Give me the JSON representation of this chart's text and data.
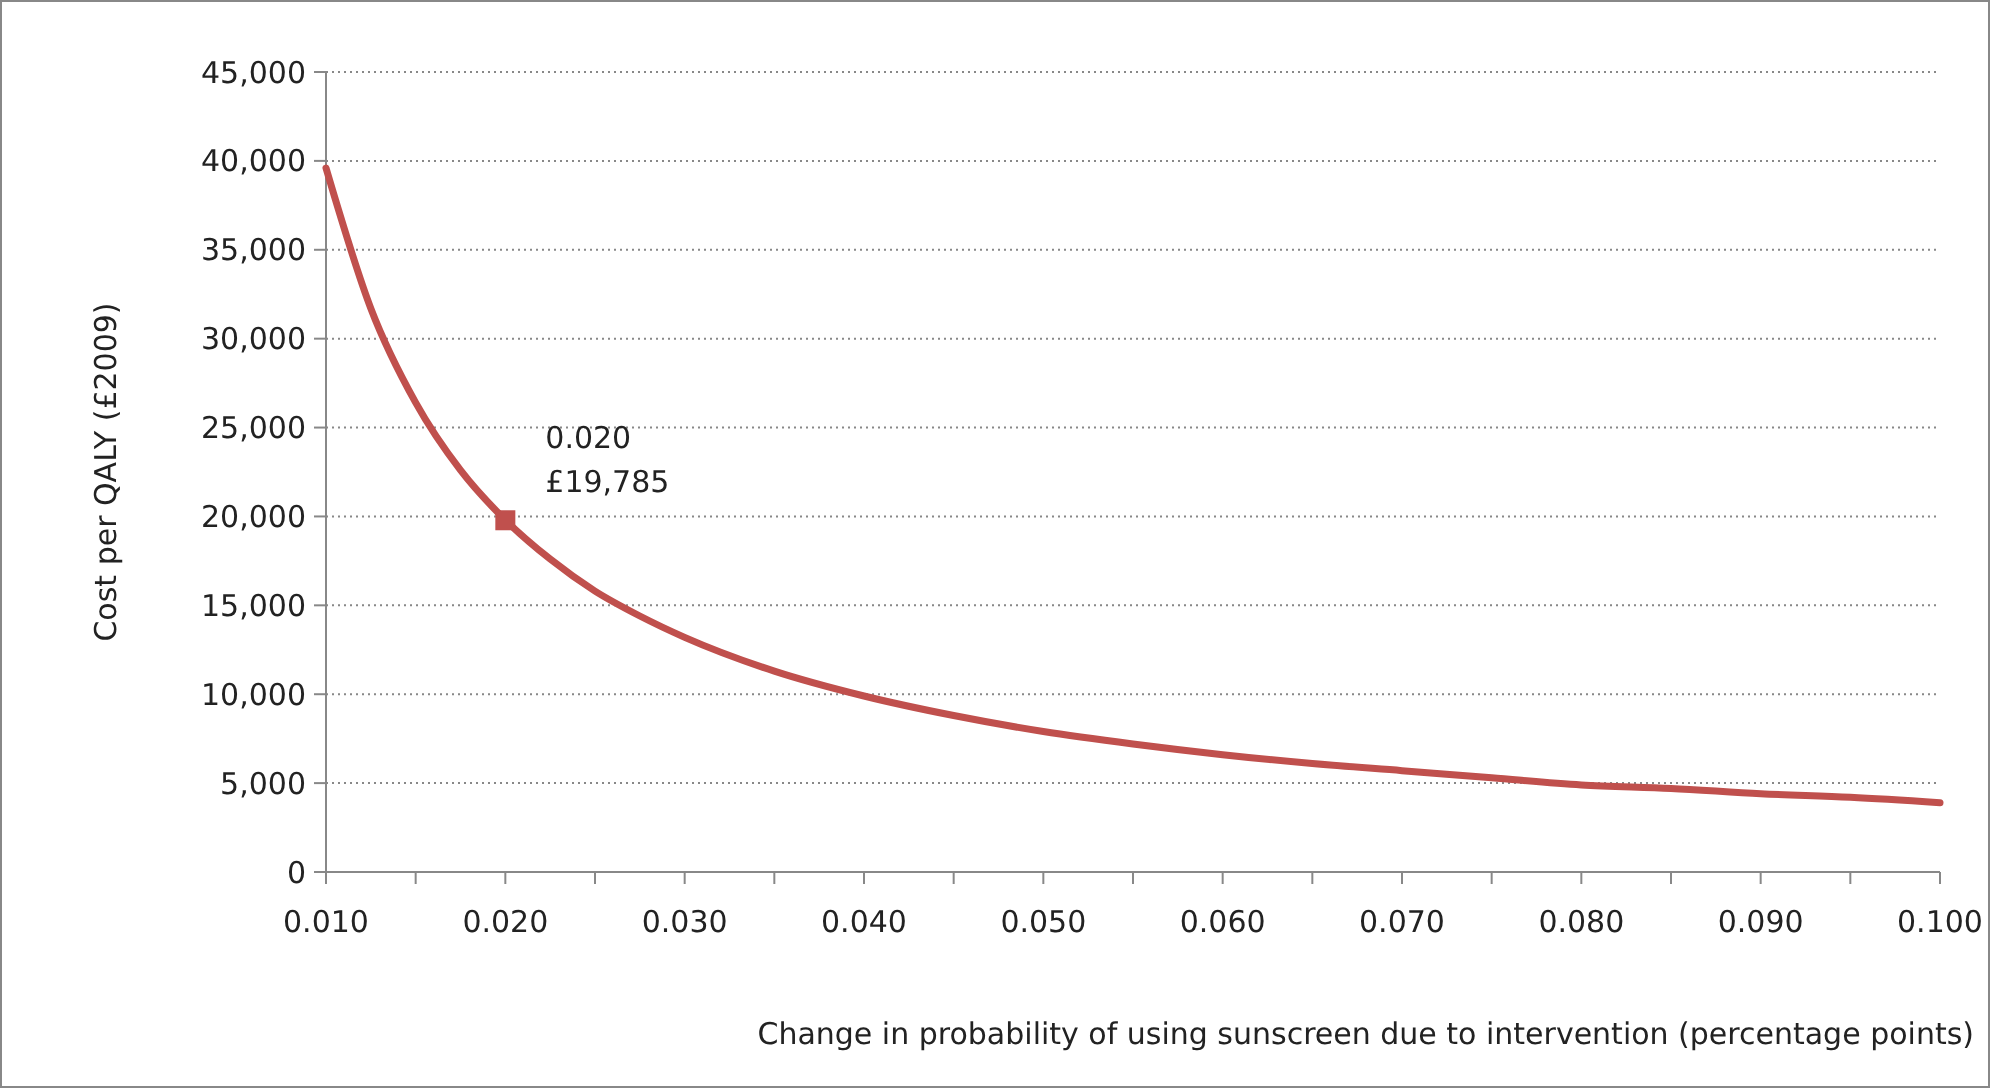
{
  "chart_data": {
    "type": "line",
    "xlabel": "Change in probability of using sunscreen due to intervention (percentage points)",
    "ylabel": "Cost per QALY (£2009)",
    "xlim": [
      0.01,
      0.1
    ],
    "xticks": [
      {
        "value": 0.01,
        "label": "0.010"
      },
      {
        "value": 0.015,
        "label": null
      },
      {
        "value": 0.02,
        "label": "0.020"
      },
      {
        "value": 0.025,
        "label": null
      },
      {
        "value": 0.03,
        "label": "0.030"
      },
      {
        "value": 0.035,
        "label": null
      },
      {
        "value": 0.04,
        "label": "0.040"
      },
      {
        "value": 0.045,
        "label": null
      },
      {
        "value": 0.05,
        "label": "0.050"
      },
      {
        "value": 0.055,
        "label": null
      },
      {
        "value": 0.06,
        "label": "0.060"
      },
      {
        "value": 0.065,
        "label": null
      },
      {
        "value": 0.07,
        "label": "0.070"
      },
      {
        "value": 0.075,
        "label": null
      },
      {
        "value": 0.08,
        "label": "0.080"
      },
      {
        "value": 0.085,
        "label": null
      },
      {
        "value": 0.09,
        "label": "0.090"
      },
      {
        "value": 0.095,
        "label": null
      },
      {
        "value": 0.1,
        "label": "0.100"
      }
    ],
    "ylim": [
      0,
      45000
    ],
    "yticks": [
      0,
      {
        "value": 5000,
        "label": "5,000"
      },
      {
        "value": 10000,
        "label": "10,000"
      },
      {
        "value": 15000,
        "label": "15,000"
      },
      {
        "value": 20000,
        "label": "20,000"
      },
      {
        "value": 25000,
        "label": "25,000"
      },
      {
        "value": 30000,
        "label": "30,000"
      },
      {
        "value": 35000,
        "label": "35,000"
      },
      {
        "value": 40000,
        "label": "40,000"
      },
      {
        "value": 45000,
        "label": "45,000"
      }
    ],
    "grid": "y",
    "series": [
      {
        "color": "#c0504d",
        "marker": "none",
        "x": [
          0.01,
          0.0125,
          0.015,
          0.0175,
          0.02,
          0.0225,
          0.025,
          0.0275,
          0.03,
          0.035,
          0.04,
          0.045,
          0.05,
          0.055,
          0.06,
          0.065,
          0.07,
          0.075,
          0.08,
          0.085,
          0.09,
          0.095,
          0.1
        ],
        "values": [
          39600,
          31700,
          26400,
          22600,
          19800,
          17600,
          15800,
          14400,
          13200,
          11300,
          9900,
          8800,
          7900,
          7200,
          6600,
          6100,
          5700,
          5300,
          4900,
          4700,
          4400,
          4200,
          3900
        ]
      },
      {
        "type": "scatter",
        "color": "#c0504d",
        "marker": "square",
        "x": [
          0.02
        ],
        "values": [
          19785
        ]
      }
    ],
    "annotations": [
      {
        "text": "0.020\n£19,785",
        "x": 0.02,
        "y": 19785
      }
    ]
  }
}
